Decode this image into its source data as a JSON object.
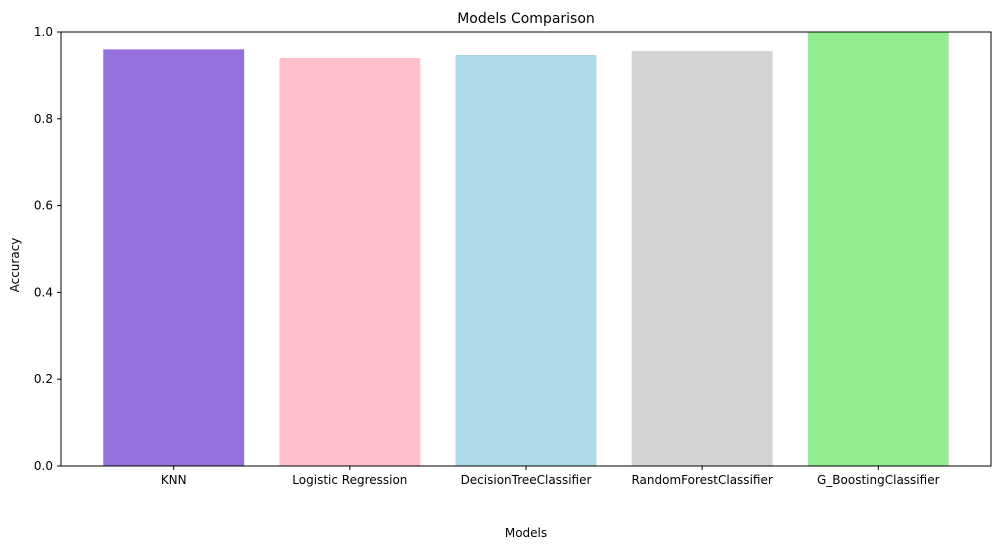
{
  "chart_data": {
    "type": "bar",
    "title": "Models Comparison",
    "xlabel": "Models",
    "ylabel": "Accuracy",
    "categories": [
      "KNN",
      "Logistic Regression",
      "DecisionTreeClassifier",
      "RandomForestClassifier",
      "G_BoostingClassifier"
    ],
    "values": [
      0.96,
      0.94,
      0.947,
      0.956,
      1.0
    ],
    "colors": [
      "#9370db",
      "#ffc0cb",
      "#add8e6",
      "#d3d3d3",
      "#90ee90"
    ],
    "ylim": [
      0,
      1.0
    ],
    "yticks": [
      "0.0",
      "0.2",
      "0.4",
      "0.6",
      "0.8",
      "1.0"
    ],
    "grid": false,
    "legend": false
  }
}
